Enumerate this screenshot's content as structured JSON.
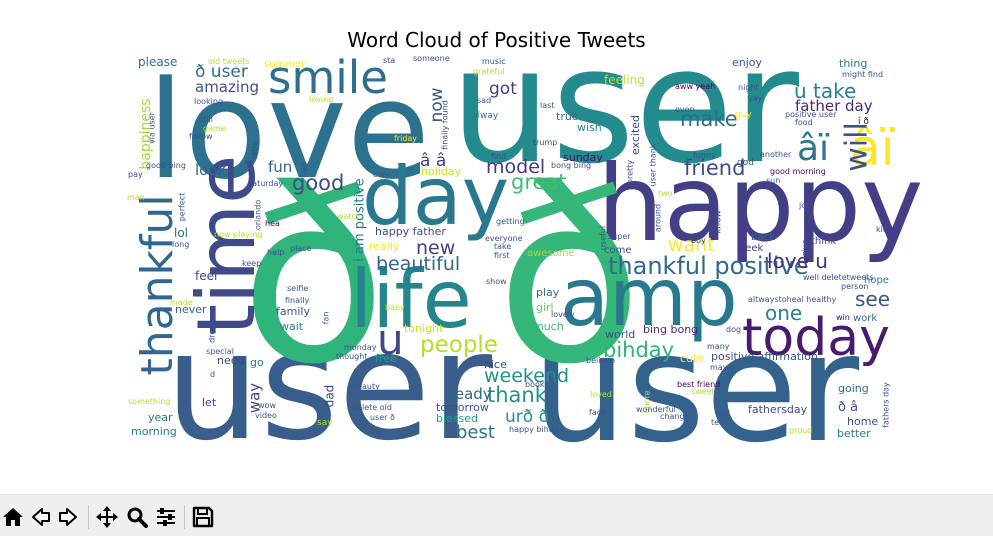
{
  "chart_data": {
    "type": "wordcloud",
    "title": "Word Cloud of Positive Tweets",
    "words": [
      {
        "text": "user",
        "color": "#238a8d"
      },
      {
        "text": "user",
        "color": "#3a5e8c"
      },
      {
        "text": "user",
        "color": "#33638d"
      },
      {
        "text": "love",
        "color": "#2c718e"
      },
      {
        "text": "happy",
        "color": "#433e85"
      },
      {
        "text": "ð",
        "color": "#2fb47c"
      },
      {
        "text": "ð",
        "color": "#35b779"
      },
      {
        "text": "amp",
        "color": "#29798e"
      },
      {
        "text": "day",
        "color": "#2a788e"
      },
      {
        "text": "life",
        "color": "#25858e"
      },
      {
        "text": "time",
        "color": "#3e4a89"
      },
      {
        "text": "thankful",
        "color": "#31668e"
      },
      {
        "text": "today",
        "color": "#481b6d"
      },
      {
        "text": "smile",
        "color": "#2d708e"
      },
      {
        "text": "âï",
        "color": "#fde725"
      },
      {
        "text": "âï",
        "color": "#2a768e"
      },
      {
        "text": "u",
        "color": "#3f4788"
      },
      {
        "text": "will",
        "color": "#3b518b"
      },
      {
        "text": "thankful positive",
        "color": "#30698e"
      },
      {
        "text": "people",
        "color": "#b5de2b"
      },
      {
        "text": "bihday",
        "color": "#2eb37c"
      },
      {
        "text": "great",
        "color": "#3fbc73"
      },
      {
        "text": "good",
        "color": "#3e4c8a"
      },
      {
        "text": "model",
        "color": "#443983"
      },
      {
        "text": "friend",
        "color": "#3d4d8a"
      },
      {
        "text": "make",
        "color": "#2e6e8e"
      },
      {
        "text": "u take",
        "color": "#277f8e"
      },
      {
        "text": "love u",
        "color": "#46327e"
      },
      {
        "text": "one",
        "color": "#25848e"
      },
      {
        "text": "see",
        "color": "#39568c"
      },
      {
        "text": "father day",
        "color": "#482878"
      },
      {
        "text": "weekend",
        "color": "#20928c"
      },
      {
        "text": "thank",
        "color": "#21918c"
      },
      {
        "text": "best",
        "color": "#2c728e"
      },
      {
        "text": "want",
        "color": "#fde725"
      },
      {
        "text": "beautiful",
        "color": "#31688e"
      },
      {
        "text": "new",
        "color": "#433d84"
      },
      {
        "text": "got",
        "color": "#424086"
      },
      {
        "text": "now",
        "color": "#38598c"
      },
      {
        "text": "amazing",
        "color": "#3b528b"
      },
      {
        "text": "ð user",
        "color": "#2e6d8e"
      },
      {
        "text": "look",
        "color": "#33638d"
      },
      {
        "text": "fun",
        "color": "#31688e"
      },
      {
        "text": "happiness",
        "color": "#a2da37"
      },
      {
        "text": "â â",
        "color": "#453781"
      },
      {
        "text": "urð ð",
        "color": "#21918c"
      },
      {
        "text": "way",
        "color": "#414487"
      },
      {
        "text": "ready",
        "color": "#33628d"
      },
      {
        "text": "i am positive",
        "color": "#2a788e"
      },
      {
        "text": "please",
        "color": "#2c718e"
      },
      {
        "text": "feel",
        "color": "#3e4989"
      },
      {
        "text": "dad",
        "color": "#424186"
      },
      {
        "text": "lol",
        "color": "#31688e"
      },
      {
        "text": "feeling",
        "color": "#c2df23"
      },
      {
        "text": "enjoy",
        "color": "#3b528b"
      },
      {
        "text": "thing",
        "color": "#277e8e"
      },
      {
        "text": "wish",
        "color": "#23888e"
      },
      {
        "text": "excited",
        "color": "#3f4788"
      },
      {
        "text": "sunday",
        "color": "#471365"
      },
      {
        "text": "true",
        "color": "#2e6e8e"
      },
      {
        "text": "holiday",
        "color": "#cde11d"
      },
      {
        "text": "happy father",
        "color": "#3e4a89"
      },
      {
        "text": "really",
        "color": "#fde725"
      },
      {
        "text": "awesome",
        "color": "#a0da39"
      },
      {
        "text": "play",
        "color": "#2e6f8e"
      },
      {
        "text": "girl",
        "color": "#6ccd5a"
      },
      {
        "text": "much",
        "color": "#35b779"
      },
      {
        "text": "tonight",
        "color": "#d2e21b"
      },
      {
        "text": "nice",
        "color": "#3e4a89"
      },
      {
        "text": "tomorrow",
        "color": "#3b528b"
      },
      {
        "text": "blessed",
        "color": "#1fa088"
      },
      {
        "text": "family",
        "color": "#3b528b"
      },
      {
        "text": "wait",
        "color": "#26828e"
      },
      {
        "text": "never",
        "color": "#31688e"
      },
      {
        "text": "need",
        "color": "#414487"
      },
      {
        "text": "go",
        "color": "#277f8e"
      },
      {
        "text": "year",
        "color": "#2c728e"
      },
      {
        "text": "let",
        "color": "#414487"
      },
      {
        "text": "morning",
        "color": "#2a768e"
      },
      {
        "text": "free",
        "color": "#20a386"
      },
      {
        "text": "world",
        "color": "#3b528b"
      },
      {
        "text": "bing bong",
        "color": "#472d7b"
      },
      {
        "text": "cute",
        "color": "#fde725"
      },
      {
        "text": "positive affirmation",
        "color": "#3b528b"
      },
      {
        "text": "fathersday",
        "color": "#3e4a89"
      },
      {
        "text": "ð â",
        "color": "#39568c"
      },
      {
        "text": "going",
        "color": "#2d708e"
      },
      {
        "text": "home",
        "color": "#3b528b"
      },
      {
        "text": "better",
        "color": "#2a788e"
      },
      {
        "text": "work",
        "color": "#2e6d8e"
      },
      {
        "text": "hope",
        "color": "#26828e"
      },
      {
        "text": "think",
        "color": "#3b528b"
      },
      {
        "text": "back",
        "color": "#31688e"
      },
      {
        "text": "week",
        "color": "#453882"
      },
      {
        "text": "come",
        "color": "#3b528b"
      },
      {
        "text": "summer",
        "color": "#fde725"
      },
      {
        "text": "old tweets",
        "color": "#b5de2b"
      },
      {
        "text": "someone",
        "color": "#3e4a89"
      },
      {
        "text": "music",
        "color": "#3e4a89"
      },
      {
        "text": "grateful",
        "color": "#b5de2b"
      },
      {
        "text": "sta",
        "color": "#3e4a89"
      },
      {
        "text": "finally found",
        "color": "#3b528b"
      },
      {
        "text": "sad",
        "color": "#3b528b"
      },
      {
        "text": "alway",
        "color": "#2a788e"
      },
      {
        "text": "last",
        "color": "#3b528b"
      },
      {
        "text": "friday",
        "color": "#fde725"
      },
      {
        "text": "find",
        "color": "#3b528b"
      },
      {
        "text": "trump",
        "color": "#3b528b"
      },
      {
        "text": "bong bing",
        "color": "#3b528b"
      },
      {
        "text": "pretty",
        "color": "#3b528b"
      },
      {
        "text": "user thank",
        "color": "#3b528b"
      },
      {
        "text": "aww yeah",
        "color": "#440154"
      },
      {
        "text": "even",
        "color": "#3b528b"
      },
      {
        "text": "night",
        "color": "#3b528b"
      },
      {
        "text": "yay",
        "color": "#3b528b"
      },
      {
        "text": "guy",
        "color": "#fde725"
      },
      {
        "text": "positive user",
        "color": "#3b528b"
      },
      {
        "text": "food",
        "color": "#3b528b"
      },
      {
        "text": "might find",
        "color": "#3b528b"
      },
      {
        "text": "i ð",
        "color": "#440154"
      },
      {
        "text": "via user",
        "color": "#3b528b"
      },
      {
        "text": "looking",
        "color": "#3b528b"
      },
      {
        "text": "still",
        "color": "#3b528b"
      },
      {
        "text": "game",
        "color": "#b5de2b"
      },
      {
        "text": "follow",
        "color": "#3b528b"
      },
      {
        "text": "little",
        "color": "#3b528b"
      },
      {
        "text": "loving",
        "color": "#b5de2b"
      },
      {
        "text": "good bing",
        "color": "#3b528b"
      },
      {
        "text": "pay",
        "color": "#3b528b"
      },
      {
        "text": "man",
        "color": "#b5de2b"
      },
      {
        "text": "perfect",
        "color": "#3b528b"
      },
      {
        "text": "saturday",
        "color": "#3b528b"
      },
      {
        "text": "orlando",
        "color": "#3b528b"
      },
      {
        "text": "hea",
        "color": "#440154"
      },
      {
        "text": "live",
        "color": "#3b528b"
      },
      {
        "text": "cool",
        "color": "#3b528b"
      },
      {
        "text": "watch",
        "color": "#b5de2b"
      },
      {
        "text": "now playing",
        "color": "#b5de2b"
      },
      {
        "text": "long",
        "color": "#3b528b"
      },
      {
        "text": "help",
        "color": "#3b528b"
      },
      {
        "text": "place",
        "color": "#3b528b"
      },
      {
        "text": "keep",
        "color": "#3b528b"
      },
      {
        "text": "getting",
        "color": "#3b528b"
      },
      {
        "text": "everyone",
        "color": "#3b528b"
      },
      {
        "text": "take",
        "color": "#3b528b"
      },
      {
        "text": "first",
        "color": "#3b528b"
      },
      {
        "text": "useful",
        "color": "#3b528b"
      },
      {
        "text": "super",
        "color": "#3b528b"
      },
      {
        "text": "around",
        "color": "#3b528b"
      },
      {
        "text": "know",
        "color": "#3b528b"
      },
      {
        "text": "boy",
        "color": "#3b528b"
      },
      {
        "text": "two",
        "color": "#b5de2b"
      },
      {
        "text": "funny",
        "color": "#3b528b"
      },
      {
        "text": "god",
        "color": "#3b528b"
      },
      {
        "text": "another",
        "color": "#3b528b"
      },
      {
        "text": "good morning",
        "color": "#440154"
      },
      {
        "text": "sun",
        "color": "#3b528b"
      },
      {
        "text": "job",
        "color": "#3b528b"
      },
      {
        "text": "give",
        "color": "#3b528b"
      },
      {
        "text": "kid",
        "color": "#3b528b"
      },
      {
        "text": "well deletetweets",
        "color": "#3b528b"
      },
      {
        "text": "altwaystoheal healthy",
        "color": "#3b528b"
      },
      {
        "text": "person",
        "color": "#3b528b"
      },
      {
        "text": "win",
        "color": "#440154"
      },
      {
        "text": "show",
        "color": "#3b528b"
      },
      {
        "text": "selfie",
        "color": "#3b528b"
      },
      {
        "text": "finally",
        "color": "#3b528b"
      },
      {
        "text": "made",
        "color": "#b5de2b"
      },
      {
        "text": "dream",
        "color": "#3b528b"
      },
      {
        "text": "fan",
        "color": "#3b528b"
      },
      {
        "text": "baby",
        "color": "#b5de2b"
      },
      {
        "text": "lovely",
        "color": "#3b528b"
      },
      {
        "text": "special",
        "color": "#3b528b"
      },
      {
        "text": "monday",
        "color": "#3b528b"
      },
      {
        "text": "thought",
        "color": "#3b528b"
      },
      {
        "text": "believe",
        "color": "#3b528b"
      },
      {
        "text": "dog",
        "color": "#3b528b"
      },
      {
        "text": "many",
        "color": "#3b528b"
      },
      {
        "text": "may",
        "color": "#3b528b"
      },
      {
        "text": "best friend",
        "color": "#440154"
      },
      {
        "text": "sweet",
        "color": "#b5de2b"
      },
      {
        "text": "d",
        "color": "#3b528b"
      },
      {
        "text": "beauty",
        "color": "#3b528b"
      },
      {
        "text": "book",
        "color": "#3b528b"
      },
      {
        "text": "loved",
        "color": "#b5de2b"
      },
      {
        "text": "quote",
        "color": "#b5de2b"
      },
      {
        "text": "something",
        "color": "#b5de2b"
      },
      {
        "text": "wow",
        "color": "#3b528b"
      },
      {
        "text": "video",
        "color": "#3b528b"
      },
      {
        "text": "delete old",
        "color": "#3b528b"
      },
      {
        "text": "user ð",
        "color": "#3b528b"
      },
      {
        "text": "say",
        "color": "#b5de2b"
      },
      {
        "text": "face",
        "color": "#3b528b"
      },
      {
        "text": "wonderful",
        "color": "#3b528b"
      },
      {
        "text": "change",
        "color": "#3b528b"
      },
      {
        "text": "end",
        "color": "#3b528b"
      },
      {
        "text": "team",
        "color": "#3b528b"
      },
      {
        "text": "proud",
        "color": "#b5de2b"
      },
      {
        "text": "fathers day",
        "color": "#3b528b"
      },
      {
        "text": "happy bihday",
        "color": "#3b528b"
      }
    ]
  },
  "toolbar": {
    "icons": [
      "home-icon",
      "back-arrow-icon",
      "forward-arrow-icon",
      "pan-icon",
      "zoom-icon",
      "configure-subplots-icon",
      "save-icon"
    ]
  }
}
